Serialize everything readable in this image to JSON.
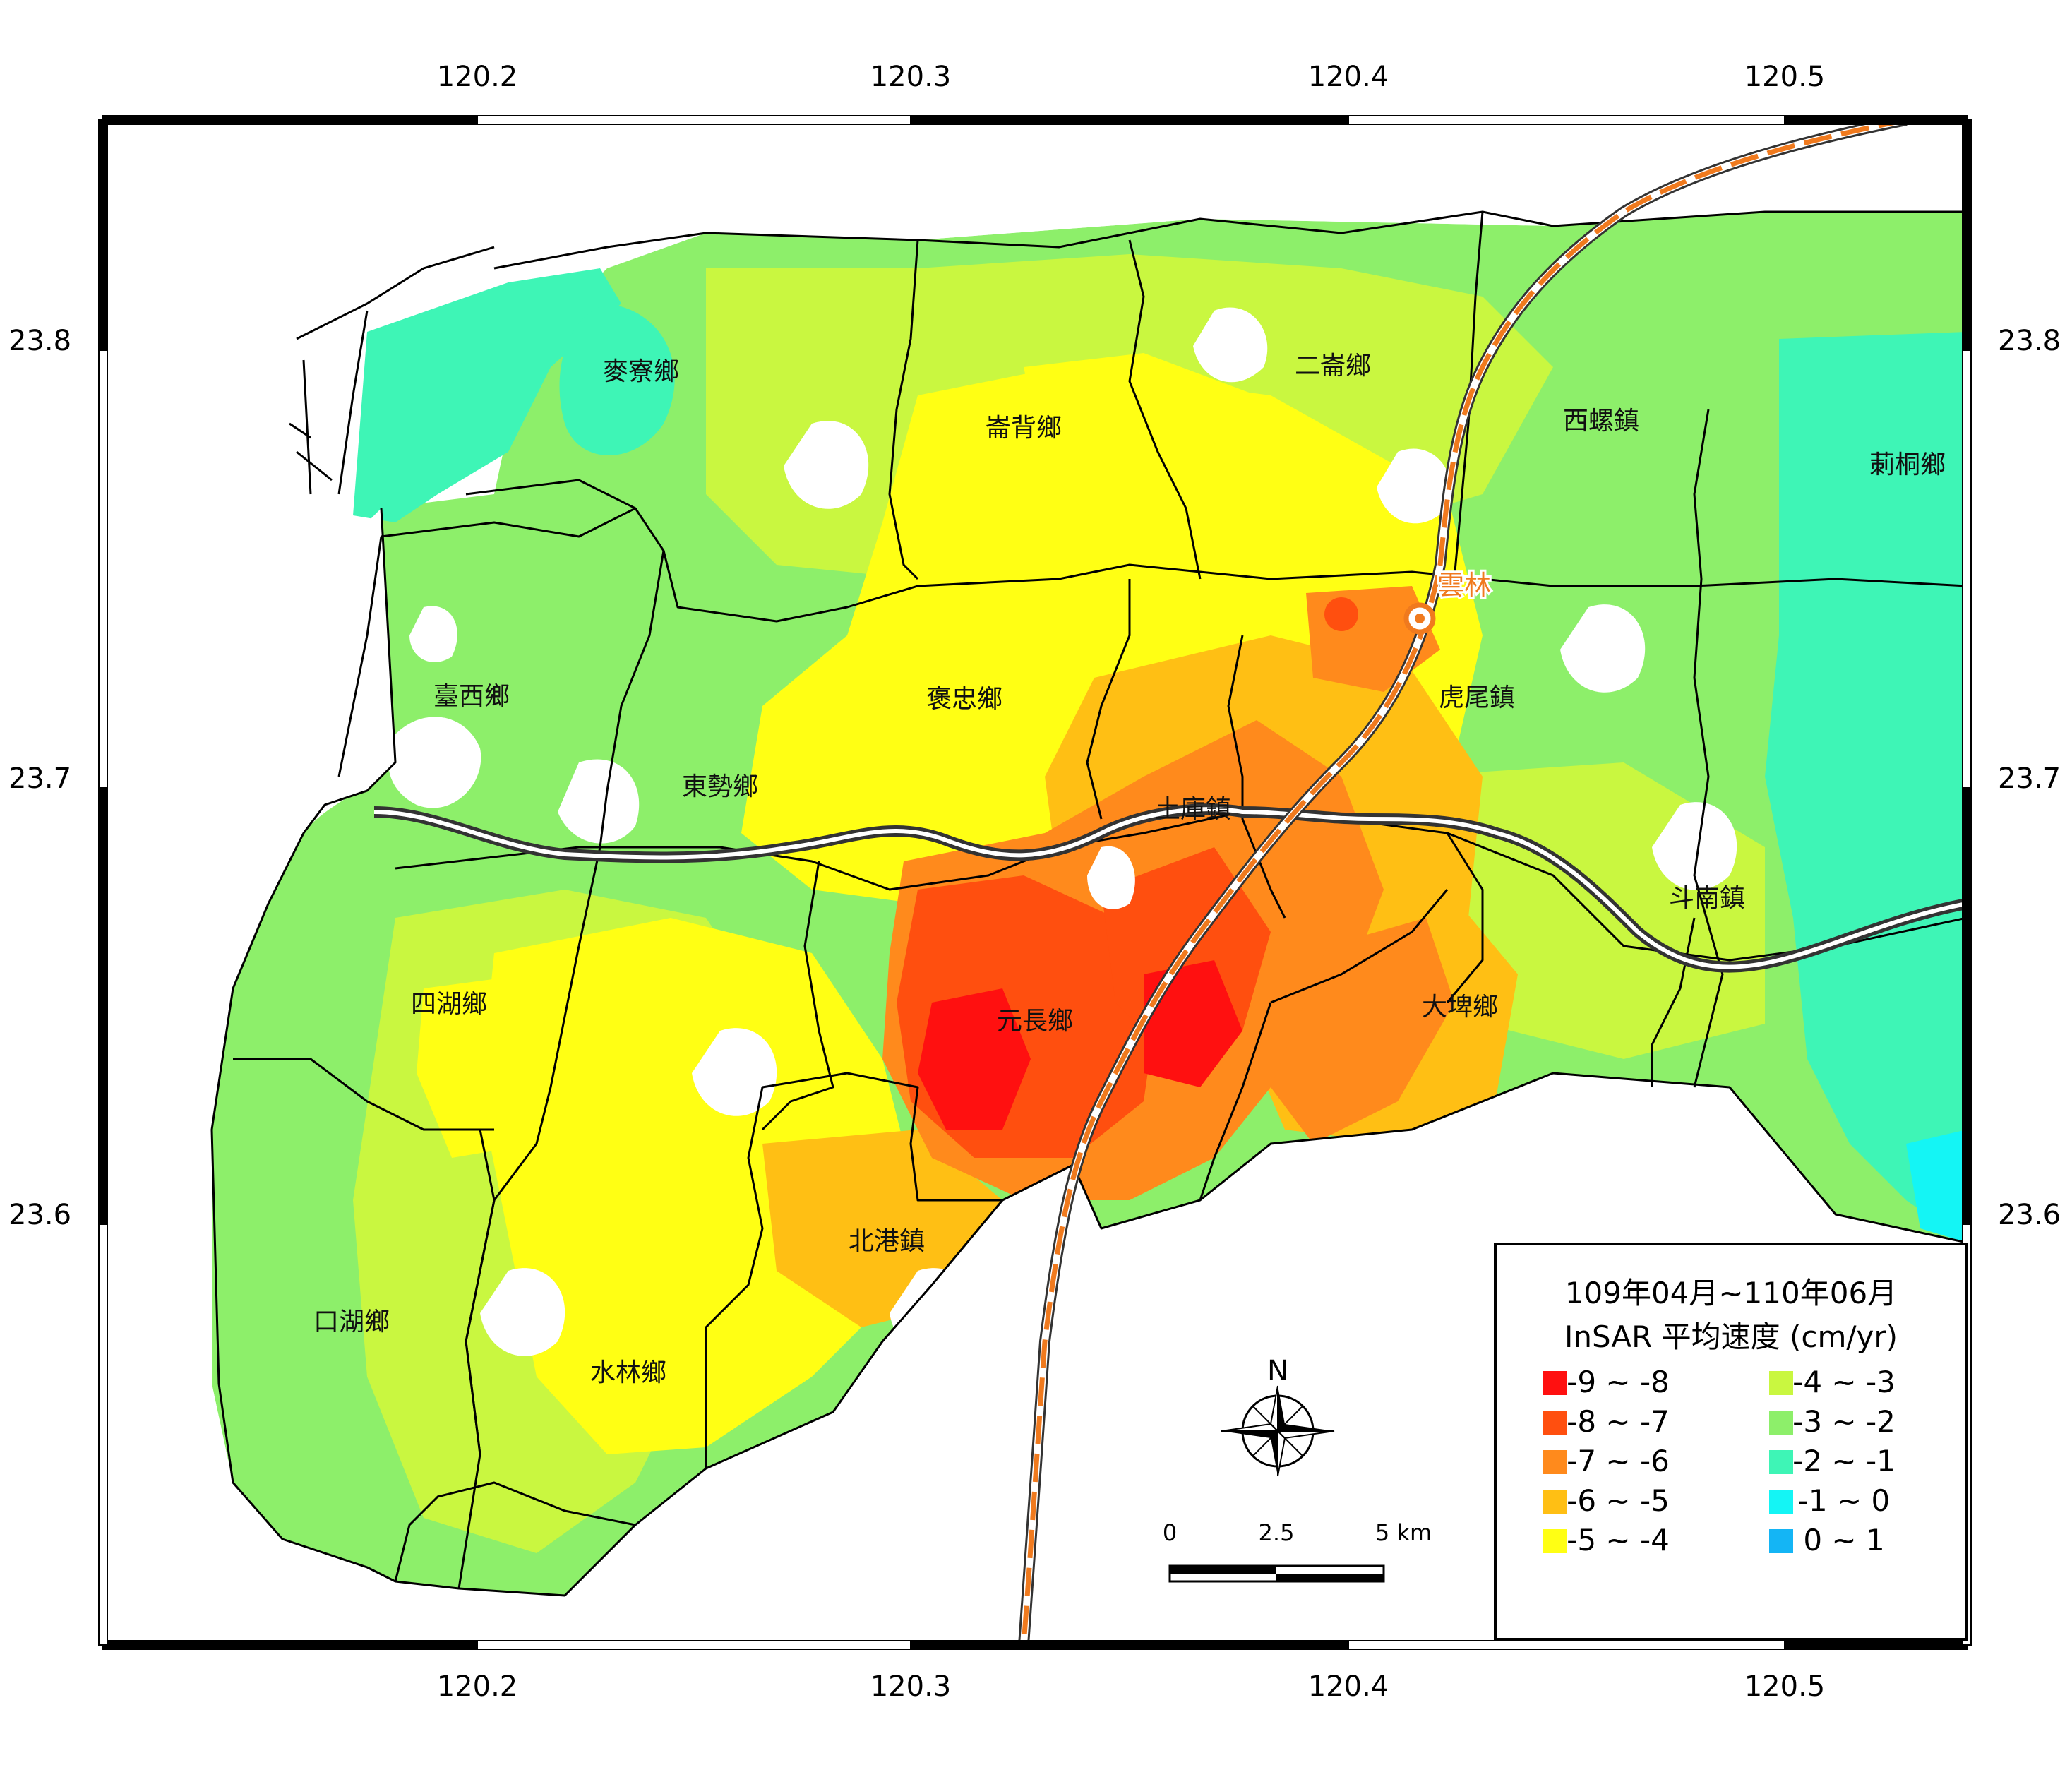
{
  "title_lines": [
    "109年04月~110年06月",
    "InSAR 平均速度 (cm/yr)"
  ],
  "lon_ticks": [
    "120.2",
    "120.3",
    "120.4",
    "120.5"
  ],
  "lat_ticks": [
    "23.8",
    "23.7",
    "23.6"
  ],
  "towns": [
    {
      "key": "mailiao",
      "name": "麥寮鄉"
    },
    {
      "key": "lunbei",
      "name": "崙背鄉"
    },
    {
      "key": "erlun",
      "name": "二崙鄉"
    },
    {
      "key": "xiluo",
      "name": "西螺鎮"
    },
    {
      "key": "citong",
      "name": "莿桐鄉"
    },
    {
      "key": "taixi",
      "name": "臺西鄉"
    },
    {
      "key": "baozhong",
      "name": "褒忠鄉"
    },
    {
      "key": "huwei",
      "name": "虎尾鎮"
    },
    {
      "key": "dongshi",
      "name": "東勢鄉"
    },
    {
      "key": "tuku",
      "name": "土庫鎮"
    },
    {
      "key": "dounan",
      "name": "斗南鎮"
    },
    {
      "key": "sihu",
      "name": "四湖鄉"
    },
    {
      "key": "yuanzhang",
      "name": "元長鄉"
    },
    {
      "key": "dapi",
      "name": "大埤鄉"
    },
    {
      "key": "beigang",
      "name": "北港鎮"
    },
    {
      "key": "kouhu",
      "name": "口湖鄉"
    },
    {
      "key": "shuilin",
      "name": "水林鄉"
    }
  ],
  "station_label": "雲林",
  "north_label": "N",
  "scale": {
    "labels": [
      "0",
      "2.5",
      "5 km"
    ]
  },
  "legend": {
    "items": [
      {
        "label": "-9 ~ -8",
        "color": "#ff1010"
      },
      {
        "label": "-8 ~ -7",
        "color": "#ff4f0f"
      },
      {
        "label": "-7 ~ -6",
        "color": "#ff8a1c"
      },
      {
        "label": "-6 ~ -5",
        "color": "#ffbf14"
      },
      {
        "label": "-5 ~ -4",
        "color": "#ffff14"
      },
      {
        "label": "-4 ~ -3",
        "color": "#c9f740"
      },
      {
        "label": "-3 ~ -2",
        "color": "#8def6a"
      },
      {
        "label": "-2 ~ -1",
        "color": "#3ef5b6"
      },
      {
        "label": "-1 ~ 0",
        "color": "#14f5f5"
      },
      {
        "label": "0 ~ 1",
        "color": "#14b5f5"
      }
    ]
  },
  "colors": {
    "rail": "#f07a1e",
    "rail_outline": "#333333",
    "station": "#f07a1e",
    "highway": "#333333",
    "boundary": "#000000"
  }
}
